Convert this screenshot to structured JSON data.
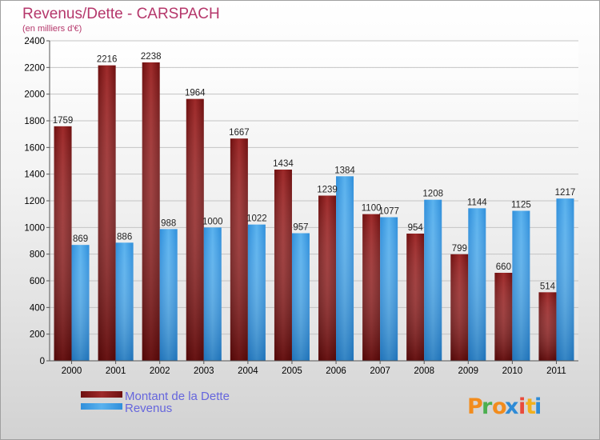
{
  "chart_data": {
    "type": "bar",
    "title": "Revenus/Dette - CARSPACH",
    "subtitle": "(en milliers d'€)",
    "categories": [
      "2000",
      "2001",
      "2002",
      "2003",
      "2004",
      "2005",
      "2006",
      "2007",
      "2008",
      "2009",
      "2010",
      "2011"
    ],
    "series": [
      {
        "name": "Montant de la Dette",
        "color": "#8b1a1a",
        "values": [
          1759,
          2216,
          2238,
          1964,
          1667,
          1434,
          1239,
          1100,
          954,
          799,
          660,
          514
        ]
      },
      {
        "name": "Revenus",
        "color": "#3d9de6",
        "values": [
          869,
          886,
          988,
          1000,
          1022,
          957,
          1384,
          1077,
          1208,
          1144,
          1125,
          1217
        ]
      }
    ],
    "ylim": [
      0,
      2400
    ],
    "yticks": [
      0,
      200,
      400,
      600,
      800,
      1000,
      1200,
      1400,
      1600,
      1800,
      2000,
      2200,
      2400
    ],
    "grid": true,
    "legend_position": "bottom-left"
  },
  "logo": {
    "letters": [
      "P",
      "r",
      "o",
      "x",
      "i",
      "t",
      "i"
    ],
    "colors": [
      "#f28c1d",
      "#4caf50",
      "#f28c1d",
      "#2e8bd6",
      "#e94b3c",
      "#f2b01d",
      "#2e8bd6"
    ]
  }
}
